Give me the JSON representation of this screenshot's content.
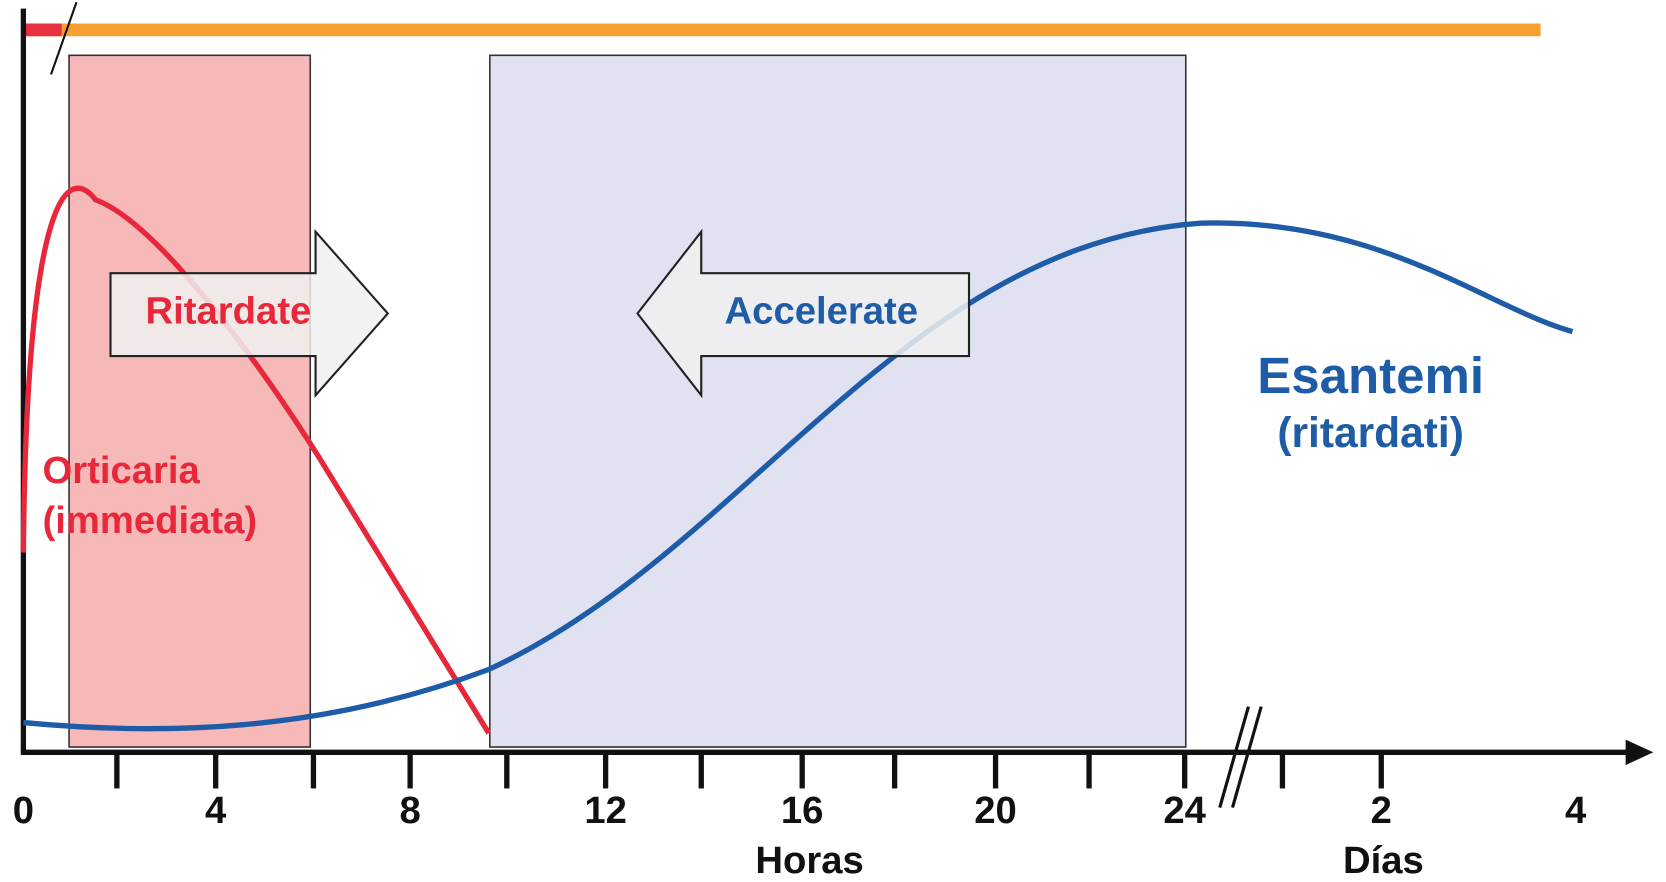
{
  "labels": {
    "delay": "Ritardate",
    "accelerate": "Accelerate",
    "urticaria": [
      "Orticaria",
      "(immediata)"
    ],
    "exanthem": [
      "Esantemi",
      "(ritardati)"
    ]
  },
  "x_axis": {
    "hour_ticks": [
      "0",
      "4",
      "8",
      "12",
      "16",
      "20",
      "24"
    ],
    "day_ticks": [
      "2",
      "4"
    ],
    "hour_unit": "Horas",
    "day_unit": "Días"
  }
}
